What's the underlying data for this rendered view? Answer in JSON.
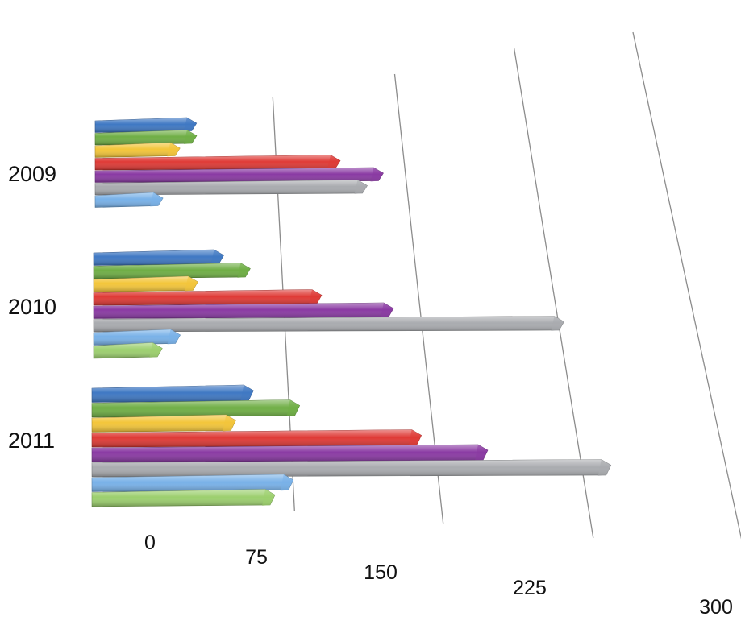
{
  "chart_data": {
    "type": "bar",
    "orientation": "horizontal",
    "style": "3d-perspective",
    "title": "",
    "xlabel": "",
    "ylabel": "",
    "categories": [
      "2009",
      "2010",
      "2011"
    ],
    "x_ticks": [
      "0",
      "75",
      "150",
      "225",
      "300"
    ],
    "xlim": [
      0,
      300
    ],
    "grid": "vertical lines only",
    "legend": "none",
    "series": [
      {
        "color": "#3f78c3",
        "values": [
          20,
          35,
          50
        ]
      },
      {
        "color": "#6fae45",
        "values": [
          20,
          50,
          75
        ]
      },
      {
        "color": "#f3c53a",
        "values": [
          10,
          20,
          40
        ]
      },
      {
        "color": "#df3a36",
        "values": [
          105,
          90,
          140
        ]
      },
      {
        "color": "#8a3aa3",
        "values": [
          130,
          130,
          175
        ]
      },
      {
        "color": "#a9abaf",
        "values": [
          120,
          225,
          240
        ]
      },
      {
        "color": "#78b1e8",
        "values": [
          0,
          10,
          70
        ]
      },
      {
        "color": "#9ccf6e",
        "values": [
          null,
          0,
          60
        ]
      }
    ]
  }
}
